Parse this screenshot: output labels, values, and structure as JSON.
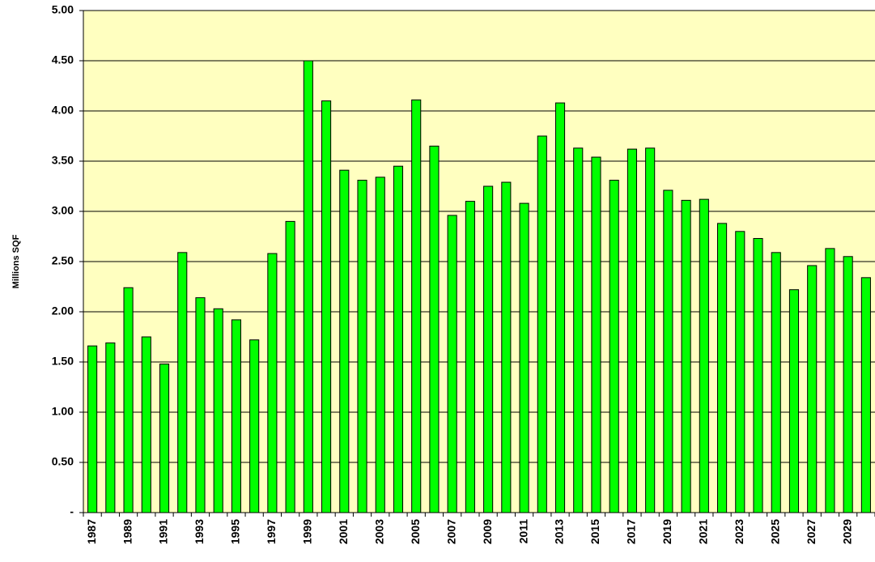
{
  "chart_data": {
    "type": "bar",
    "y_label": "Millions SQF",
    "categories": [
      "1987",
      null,
      "1989",
      null,
      "1991",
      null,
      "1993",
      null,
      "1995",
      null,
      "1997",
      null,
      "1999",
      null,
      "2001",
      null,
      "2003",
      null,
      "2005",
      null,
      "2007",
      null,
      "2009",
      null,
      "2011",
      null,
      "2013",
      null,
      "2015",
      null,
      "2017",
      null,
      "2019",
      null,
      "2021",
      null,
      "2023",
      null,
      "2025",
      null,
      "2027",
      null,
      "2029",
      null
    ],
    "values": [
      1.66,
      1.69,
      2.24,
      1.75,
      1.48,
      2.59,
      2.14,
      2.03,
      1.92,
      1.72,
      2.58,
      2.9,
      4.5,
      4.1,
      3.41,
      3.31,
      3.34,
      3.45,
      4.11,
      3.65,
      2.96,
      3.1,
      3.25,
      3.29,
      3.08,
      3.75,
      4.08,
      3.63,
      3.54,
      3.31,
      3.62,
      3.63,
      3.21,
      3.11,
      3.12,
      2.88,
      2.8,
      2.73,
      2.59,
      2.22,
      2.46,
      2.63,
      2.55,
      2.34
    ],
    "color": "#00ff00",
    "ylim": [
      0,
      5
    ],
    "yticks": [
      {
        "value": 0,
        "label": "-"
      },
      {
        "value": 0.5,
        "label": "0.50"
      },
      {
        "value": 1,
        "label": "1.00"
      },
      {
        "value": 1.5,
        "label": "1.50"
      },
      {
        "value": 2,
        "label": "2.00"
      },
      {
        "value": 2.5,
        "label": "2.50"
      },
      {
        "value": 3,
        "label": "3.00"
      },
      {
        "value": 3.5,
        "label": "3.50"
      },
      {
        "value": 4,
        "label": "4.00"
      },
      {
        "value": 4.5,
        "label": "4.50"
      },
      {
        "value": 5,
        "label": "5.00"
      }
    ],
    "grid": true
  }
}
